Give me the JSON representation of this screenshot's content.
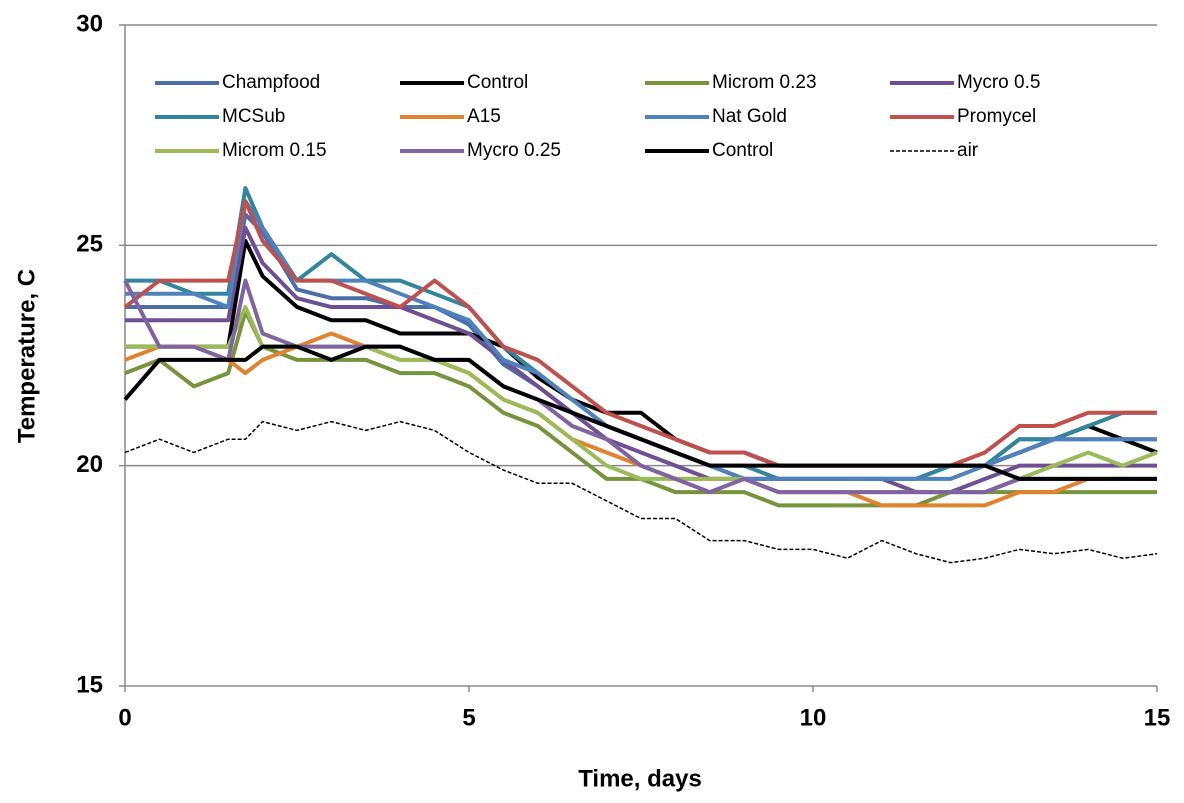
{
  "chart_data": {
    "type": "line",
    "x_label": "Time, days",
    "y_label": "Temperature, C",
    "xlim": [
      0,
      15
    ],
    "ylim": [
      15,
      30
    ],
    "xticks": [
      0,
      5,
      10,
      15
    ],
    "yticks": [
      15,
      20,
      25,
      30
    ],
    "grid": true,
    "x": [
      0,
      0.5,
      1,
      1.5,
      1.75,
      2,
      2.5,
      3,
      3.5,
      4,
      4.5,
      5,
      5.5,
      6,
      6.5,
      7,
      7.5,
      8,
      8.5,
      9,
      9.5,
      10,
      10.5,
      11,
      11.5,
      12,
      12.5,
      13,
      13.5,
      14,
      14.5,
      15
    ],
    "series": [
      {
        "name": "Champfood",
        "color": "#4a6fa5",
        "values": [
          23.6,
          23.6,
          23.6,
          23.6,
          25.7,
          25.3,
          24.0,
          23.8,
          23.8,
          23.6,
          23.6,
          23.2,
          22.3,
          21.8,
          21.2,
          20.9,
          20.6,
          20.3,
          20.0,
          19.7,
          19.7,
          19.7,
          19.7,
          19.7,
          19.7,
          20.0,
          20.0,
          20.6,
          20.6,
          20.6,
          20.6,
          20.6
        ]
      },
      {
        "name": "Control",
        "color": "#000000",
        "values": [
          22.7,
          22.7,
          22.7,
          22.7,
          25.1,
          24.3,
          23.6,
          23.3,
          23.3,
          23.0,
          23.0,
          23.0,
          22.7,
          22.0,
          21.5,
          21.2,
          21.2,
          20.6,
          20.3,
          20.3,
          20.0,
          20.0,
          20.0,
          20.0,
          20.0,
          20.0,
          20.0,
          20.3,
          20.6,
          20.9,
          20.6,
          20.3
        ]
      },
      {
        "name": "Microm 0.23",
        "color": "#77933c",
        "values": [
          22.1,
          22.4,
          21.8,
          22.1,
          23.5,
          22.7,
          22.4,
          22.4,
          22.4,
          22.1,
          22.1,
          21.8,
          21.2,
          20.9,
          20.3,
          19.7,
          19.7,
          19.4,
          19.4,
          19.4,
          19.1,
          19.1,
          19.1,
          19.1,
          19.1,
          19.4,
          19.4,
          19.4,
          19.4,
          19.4,
          19.4,
          19.4
        ]
      },
      {
        "name": "Mycro 0.5",
        "color": "#6f4f94",
        "values": [
          23.3,
          23.3,
          23.3,
          23.3,
          25.4,
          24.6,
          23.8,
          23.6,
          23.6,
          23.6,
          23.3,
          23.0,
          22.4,
          21.8,
          21.2,
          20.6,
          20.3,
          20.0,
          19.7,
          19.7,
          19.7,
          19.7,
          19.7,
          19.7,
          19.4,
          19.4,
          19.7,
          20.0,
          20.0,
          20.0,
          20.0,
          20.0
        ]
      },
      {
        "name": "MCSub",
        "color": "#31859c",
        "values": [
          24.2,
          24.2,
          23.9,
          23.9,
          26.3,
          25.4,
          24.2,
          24.8,
          24.2,
          24.2,
          23.9,
          23.6,
          22.7,
          22.1,
          21.5,
          20.9,
          20.6,
          20.3,
          20.0,
          20.0,
          19.7,
          19.7,
          19.7,
          19.7,
          19.7,
          20.0,
          20.0,
          20.6,
          20.6,
          20.9,
          21.2,
          21.2
        ]
      },
      {
        "name": "A15",
        "color": "#e0822e",
        "values": [
          22.4,
          22.7,
          22.7,
          22.4,
          22.1,
          22.4,
          22.7,
          23.0,
          22.7,
          22.4,
          22.4,
          22.1,
          21.5,
          21.2,
          20.6,
          20.3,
          20.0,
          19.7,
          19.7,
          19.7,
          19.4,
          19.4,
          19.4,
          19.1,
          19.1,
          19.1,
          19.1,
          19.4,
          19.4,
          19.7,
          19.7,
          19.7
        ]
      },
      {
        "name": "Nat Gold",
        "color": "#4f81bd",
        "values": [
          23.9,
          23.9,
          23.9,
          23.6,
          26.0,
          25.4,
          24.2,
          24.2,
          24.2,
          23.9,
          23.6,
          23.3,
          22.4,
          22.1,
          21.5,
          20.9,
          20.6,
          20.3,
          20.0,
          19.7,
          19.7,
          19.7,
          19.7,
          19.7,
          19.7,
          19.7,
          20.0,
          20.3,
          20.6,
          20.6,
          20.6,
          20.6
        ]
      },
      {
        "name": "Promycel",
        "color": "#c0504d",
        "values": [
          23.6,
          24.2,
          24.2,
          24.2,
          26.0,
          25.1,
          24.2,
          24.2,
          23.9,
          23.6,
          24.2,
          23.6,
          22.7,
          22.4,
          21.8,
          21.2,
          20.9,
          20.6,
          20.3,
          20.3,
          20.0,
          20.0,
          20.0,
          20.0,
          20.0,
          20.0,
          20.3,
          20.9,
          20.9,
          21.2,
          21.2,
          21.2
        ]
      },
      {
        "name": "Microm 0.15",
        "color": "#9bbb59",
        "values": [
          22.7,
          22.7,
          22.7,
          22.7,
          23.6,
          22.7,
          22.7,
          22.7,
          22.7,
          22.4,
          22.4,
          22.1,
          21.5,
          21.2,
          20.6,
          20.0,
          19.7,
          19.7,
          19.7,
          19.7,
          19.4,
          19.4,
          19.4,
          19.4,
          19.4,
          19.4,
          19.4,
          19.7,
          20.0,
          20.3,
          20.0,
          20.3
        ]
      },
      {
        "name": "Mycro 0.25",
        "color": "#8064a2",
        "values": [
          24.2,
          22.7,
          22.7,
          22.4,
          24.2,
          23.0,
          22.7,
          22.7,
          22.7,
          22.7,
          22.4,
          22.4,
          21.8,
          21.5,
          20.9,
          20.6,
          20.0,
          19.7,
          19.4,
          19.7,
          19.4,
          19.4,
          19.4,
          19.4,
          19.4,
          19.4,
          19.4,
          19.7,
          19.7,
          19.7,
          19.7,
          19.7
        ]
      },
      {
        "name": "Control",
        "color": "#000000",
        "values": [
          21.5,
          22.4,
          22.4,
          22.4,
          22.4,
          22.7,
          22.7,
          22.4,
          22.7,
          22.7,
          22.4,
          22.4,
          21.8,
          21.5,
          21.2,
          20.9,
          20.6,
          20.3,
          20.0,
          20.0,
          20.0,
          20.0,
          20.0,
          20.0,
          20.0,
          20.0,
          20.0,
          19.7,
          19.7,
          19.7,
          19.7,
          19.7
        ]
      },
      {
        "name": "air",
        "color": "#000000",
        "line_style": "dashed",
        "values": [
          20.3,
          20.6,
          20.3,
          20.6,
          20.6,
          21.0,
          20.8,
          21.0,
          20.8,
          21.0,
          20.8,
          20.3,
          19.9,
          19.6,
          19.6,
          19.2,
          18.8,
          18.8,
          18.3,
          18.3,
          18.1,
          18.1,
          17.9,
          18.3,
          18.0,
          17.8,
          17.9,
          18.1,
          18.0,
          18.1,
          17.9,
          18.0
        ]
      }
    ]
  }
}
